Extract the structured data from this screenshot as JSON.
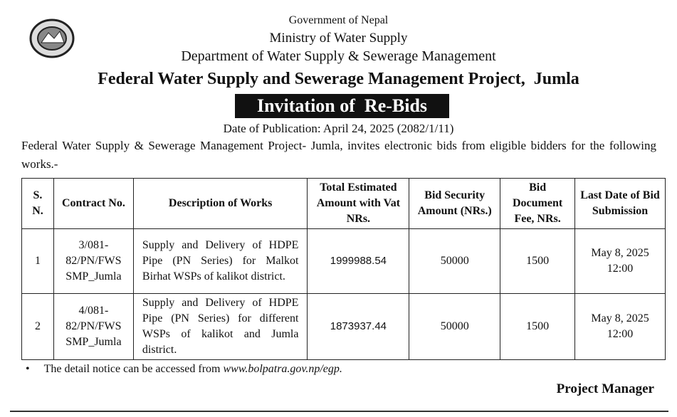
{
  "header": {
    "line1": "Government of Nepal",
    "line2": "Ministry of Water Supply",
    "line3": "Department of Water Supply & Sewerage Management",
    "title": "Federal Water Supply and Sewerage Management Project,  Jumla",
    "banner": "Invitation of  Re-Bids",
    "date": "Date of Publication: April 24, 2025 (2082/1/11)"
  },
  "intro": "Federal Water Supply & Sewerage Management Project- Jumla, invites electronic bids from eligible bidders for the following works.-",
  "table": {
    "columns": [
      "S. N.",
      "Contract No.",
      "Description of Works",
      "Total Estimated Amount with Vat NRs.",
      "Bid Security Amount (NRs.)",
      "Bid Document Fee, NRs.",
      "Last Date of Bid Submission"
    ],
    "rows": [
      [
        1,
        "3/081-82/PN/FWS SMP_Jumla",
        "Supply and Delivery of HDPE Pipe (PN Series) for Malkot Birhat WSPs of kalikot district.",
        1999988.54,
        50000,
        1500,
        "May 8, 2025 12:00"
      ],
      [
        2,
        "4/081-82/PN/FWS SMP_Jumla",
        "Supply and Delivery of HDPE Pipe (PN Series) for different WSPs of kalikot and Jumla district.",
        1873937.44,
        50000,
        1500,
        "May 8, 2025 12:00"
      ]
    ]
  },
  "note": {
    "text": "The detail notice can be accessed from ",
    "link": "www.bolpatra.gov.np/egp."
  },
  "signature": "Project Manager"
}
